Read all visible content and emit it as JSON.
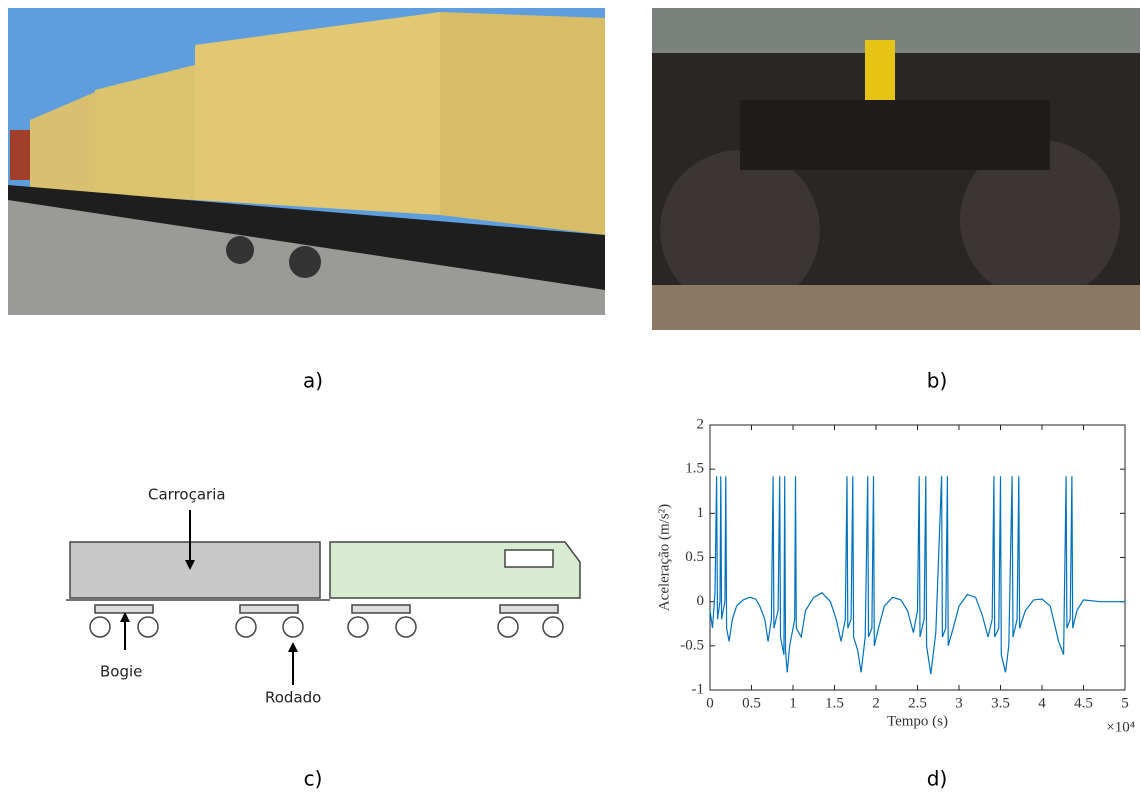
{
  "panels": [
    "a)",
    "b)",
    "c)",
    "d)"
  ],
  "diagram": {
    "labels": [
      "Carroçaria",
      "Bogie",
      "Rodado"
    ]
  },
  "chart_data": {
    "type": "line",
    "xlabel": "Tempo (s)",
    "ylabel": "Aceleração (m/s²)",
    "x_multiplier": "×10⁴",
    "xlim": [
      0,
      5
    ],
    "ylim": [
      -1,
      2
    ],
    "xticks": [
      0,
      0.5,
      1,
      1.5,
      2,
      2.5,
      3,
      3.5,
      4,
      4.5,
      5
    ],
    "yticks": [
      -1,
      -0.5,
      0,
      0.5,
      1,
      1.5,
      2
    ],
    "color": "#0072bd",
    "x": [
      0,
      0.03,
      0.06,
      0.08,
      0.09,
      0.12,
      0.13,
      0.14,
      0.18,
      0.19,
      0.2,
      0.23,
      0.27,
      0.32,
      0.4,
      0.48,
      0.55,
      0.6,
      0.66,
      0.7,
      0.74,
      0.76,
      0.77,
      0.82,
      0.84,
      0.85,
      0.89,
      0.9,
      0.91,
      0.93,
      0.96,
      1.02,
      1.03,
      1.04,
      1.1,
      1.15,
      1.25,
      1.35,
      1.45,
      1.52,
      1.58,
      1.63,
      1.65,
      1.66,
      1.7,
      1.72,
      1.73,
      1.78,
      1.82,
      1.87,
      1.9,
      1.91,
      1.95,
      1.97,
      1.98,
      2.03,
      2.1,
      2.2,
      2.3,
      2.38,
      2.45,
      2.5,
      2.52,
      2.53,
      2.58,
      2.6,
      2.61,
      2.66,
      2.72,
      2.79,
      2.8,
      2.84,
      2.86,
      2.87,
      2.93,
      3.0,
      3.1,
      3.2,
      3.28,
      3.35,
      3.4,
      3.42,
      3.43,
      3.48,
      3.5,
      3.51,
      3.56,
      3.6,
      3.64,
      3.65,
      3.7,
      3.72,
      3.73,
      3.8,
      3.9,
      4.0,
      4.1,
      4.2,
      4.26,
      4.29,
      4.3,
      4.34,
      4.36,
      4.37,
      4.42,
      4.5,
      4.7,
      4.9,
      5.0
    ],
    "values": [
      -0.1,
      -0.3,
      0.1,
      1.42,
      -0.2,
      0.0,
      1.42,
      -0.2,
      0.0,
      1.42,
      -0.3,
      -0.45,
      -0.2,
      -0.05,
      0.02,
      0.05,
      0.03,
      -0.05,
      -0.2,
      -0.45,
      -0.2,
      1.42,
      -0.3,
      -0.1,
      1.42,
      -0.4,
      -0.6,
      1.42,
      -0.55,
      -0.8,
      -0.5,
      -0.2,
      1.42,
      -0.3,
      -0.4,
      -0.1,
      0.05,
      0.1,
      0.0,
      -0.2,
      -0.45,
      -0.2,
      1.42,
      -0.3,
      -0.2,
      1.42,
      -0.4,
      -0.55,
      -0.8,
      -0.4,
      1.42,
      -0.4,
      -0.3,
      1.42,
      -0.5,
      -0.3,
      -0.05,
      0.05,
      0.02,
      -0.1,
      -0.35,
      -0.1,
      1.42,
      -0.4,
      -0.2,
      1.42,
      -0.5,
      -0.82,
      -0.35,
      1.42,
      -0.4,
      -0.3,
      1.42,
      -0.5,
      -0.3,
      -0.05,
      0.08,
      0.05,
      -0.15,
      -0.4,
      -0.2,
      1.42,
      -0.4,
      -0.3,
      1.42,
      -0.6,
      -0.8,
      -0.5,
      1.42,
      -0.4,
      -0.2,
      1.42,
      -0.3,
      -0.1,
      0.02,
      0.03,
      -0.05,
      -0.45,
      -0.6,
      1.42,
      -0.3,
      -0.2,
      1.42,
      -0.3,
      -0.1,
      0.02,
      0.0,
      0.0,
      0.0
    ]
  }
}
